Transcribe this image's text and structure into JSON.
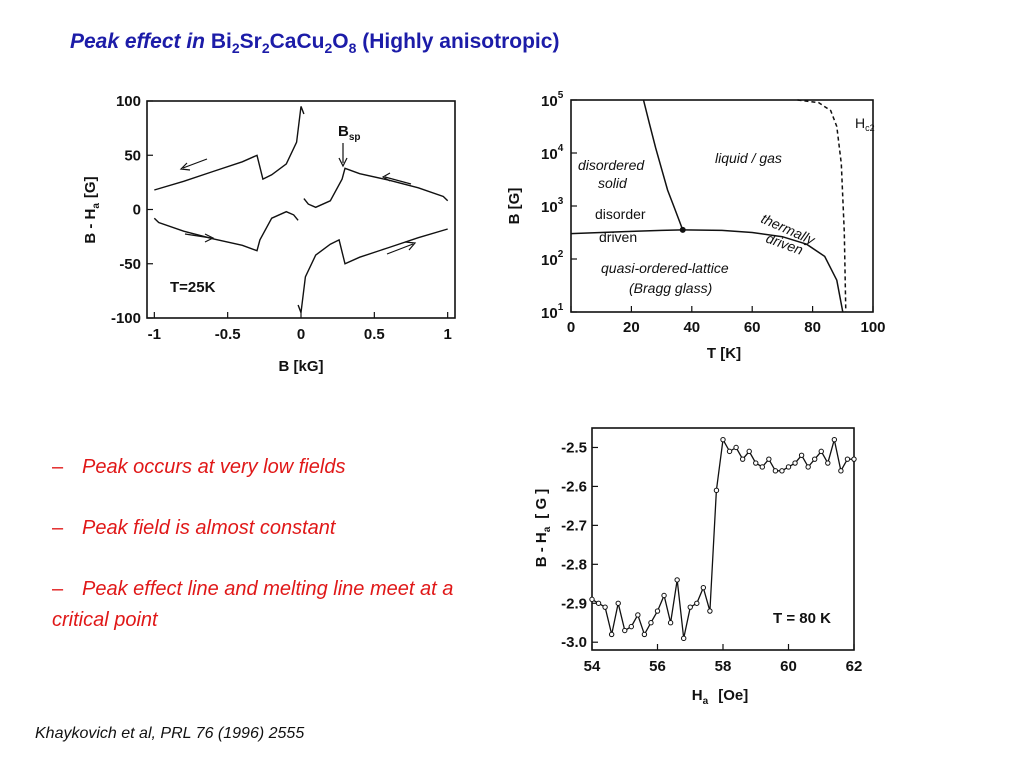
{
  "title": {
    "lead": "Peak effect in",
    "formula": [
      {
        "el": "Bi",
        "sub": "2"
      },
      {
        "el": "Sr",
        "sub": "2"
      },
      {
        "el": "CaCu",
        "sub": "2"
      },
      {
        "el": "O",
        "sub": "8"
      }
    ],
    "tail": "(Highly anisotropic)"
  },
  "bullets": [
    {
      "dash": "–",
      "text": "Peak occurs at very low fields"
    },
    {
      "dash": "–",
      "text": "Peak field is almost constant"
    },
    {
      "dash": "–",
      "text": "Peak effect line and melting line meet at a critical point"
    }
  ],
  "citation": "Khaykovich et al, PRL 76 (1996) 2555",
  "chart_data": [
    {
      "type": "line",
      "xlabel": "B [kG]",
      "ylabel_main": "B - H",
      "ylabel_sub": "a",
      "ylabel_unit": "[G]",
      "xlim": [
        -1.05,
        1.05
      ],
      "ylim": [
        -100,
        100
      ],
      "xticks": [
        -1,
        -0.5,
        0,
        0.5,
        1
      ],
      "xtick_labels": [
        "-1",
        "-0.5",
        "0",
        "0.5",
        "1"
      ],
      "yticks": [
        100,
        50,
        0,
        -50,
        -100
      ],
      "ytick_labels": [
        "100",
        "50",
        "0",
        "-50",
        "-100"
      ],
      "annotation": "T=25K",
      "marker": {
        "main": "B",
        "sub": "sp",
        "x": 0.28
      },
      "series": [
        {
          "x": [
            -1.0,
            -0.8,
            -0.6,
            -0.4,
            -0.3,
            -0.26,
            -0.2,
            -0.1,
            -0.03,
            0.0,
            0.02
          ],
          "y": [
            18,
            26,
            35,
            44,
            50,
            28,
            32,
            42,
            62,
            95,
            88
          ]
        },
        {
          "x": [
            0.02,
            0.05,
            0.1,
            0.2,
            0.28,
            0.3,
            0.4,
            0.6,
            0.8,
            0.97,
            1.0
          ],
          "y": [
            10,
            5,
            2,
            8,
            28,
            38,
            33,
            27,
            20,
            12,
            8
          ]
        },
        {
          "x": [
            1.0,
            0.8,
            0.6,
            0.4,
            0.3,
            0.26,
            0.2,
            0.1,
            0.03,
            0.0,
            -0.02
          ],
          "y": [
            -18,
            -26,
            -35,
            -44,
            -50,
            -28,
            -32,
            -42,
            -62,
            -95,
            -88
          ]
        },
        {
          "x": [
            -0.02,
            -0.05,
            -0.1,
            -0.2,
            -0.28,
            -0.3,
            -0.4,
            -0.6,
            -0.8,
            -0.97,
            -1.0
          ],
          "y": [
            -10,
            -5,
            -2,
            -8,
            -28,
            -38,
            -33,
            -27,
            -20,
            -12,
            -8
          ]
        }
      ]
    },
    {
      "type": "line",
      "xlabel": "T [K]",
      "ylabel": "B [G]",
      "xlim": [
        0,
        100
      ],
      "ylog": true,
      "ylim_log10": [
        1,
        5
      ],
      "xticks": [
        0,
        20,
        40,
        60,
        80,
        100
      ],
      "xtick_labels": [
        "0",
        "20",
        "40",
        "60",
        "80",
        "100"
      ],
      "yticks_log10": [
        1,
        2,
        3,
        4,
        5
      ],
      "ytick_base": "10",
      "ytick_exps": [
        "1",
        "2",
        "3",
        "4",
        "5"
      ],
      "labels": {
        "disordered_1": "disordered",
        "disordered_2": "solid",
        "liquid": "liquid / gas",
        "hc2_main": "H",
        "hc2_sub": "c2",
        "disorder_1": "disorder",
        "disorder_2": "driven",
        "thermally_1": "thermally",
        "thermally_2": "driven",
        "qol_1": "quasi-ordered-lattice",
        "qol_2": "(Bragg glass)"
      },
      "critical_point": {
        "T": 37,
        "B_log10": 2.55
      },
      "series": [
        {
          "name": "disorder-driven line",
          "T": [
            0,
            10,
            20,
            30,
            37
          ],
          "B_log10": [
            2.48,
            2.5,
            2.52,
            2.54,
            2.55
          ]
        },
        {
          "name": "thermally-driven line",
          "T": [
            37,
            50,
            60,
            70,
            78,
            84,
            88,
            90
          ],
          "B_log10": [
            2.55,
            2.54,
            2.5,
            2.42,
            2.28,
            2.05,
            1.6,
            1.0
          ]
        },
        {
          "name": "order-disorder boundary",
          "T": [
            24,
            26,
            28,
            30,
            32,
            34,
            36,
            37
          ],
          "B_log10": [
            5.0,
            4.55,
            4.1,
            3.7,
            3.3,
            3.0,
            2.7,
            2.55
          ]
        },
        {
          "name": "Hc2",
          "T": [
            75,
            82,
            86,
            88,
            89.5,
            90.5,
            91
          ],
          "B_log10": [
            5.0,
            4.95,
            4.8,
            4.5,
            3.8,
            2.5,
            1.0
          ]
        }
      ]
    },
    {
      "type": "line",
      "xlabel_main": "H",
      "xlabel_sub": "a",
      "xlabel_unit": "[Oe]",
      "ylabel_main": "B - H",
      "ylabel_sub": "a",
      "ylabel_unit": "[ G ]",
      "xlim": [
        54,
        62
      ],
      "ylim": [
        -3.02,
        -2.45
      ],
      "xticks": [
        54,
        56,
        58,
        60,
        62
      ],
      "xtick_labels": [
        "54",
        "56",
        "58",
        "60",
        "62"
      ],
      "yticks": [
        -2.5,
        -2.6,
        -2.7,
        -2.8,
        -2.9,
        -3.0
      ],
      "ytick_labels": [
        "-2.5",
        "-2.6",
        "-2.7",
        "-2.8",
        "-2.9",
        "-3.0"
      ],
      "annotation": "T = 80 K",
      "series": [
        {
          "x": [
            54.0,
            54.2,
            54.4,
            54.6,
            54.8,
            55.0,
            55.2,
            55.4,
            55.6,
            55.8,
            56.0,
            56.2,
            56.4,
            56.6,
            56.8,
            57.0,
            57.2,
            57.4,
            57.6,
            57.8,
            58.0,
            58.2,
            58.4,
            58.6,
            58.8,
            59.0,
            59.2,
            59.4,
            59.6,
            59.8,
            60.0,
            60.2,
            60.4,
            60.6,
            60.8,
            61.0,
            61.2,
            61.4,
            61.6,
            61.8,
            62.0
          ],
          "y": [
            -2.89,
            -2.9,
            -2.91,
            -2.98,
            -2.9,
            -2.97,
            -2.96,
            -2.93,
            -2.98,
            -2.95,
            -2.92,
            -2.88,
            -2.95,
            -2.84,
            -2.99,
            -2.91,
            -2.9,
            -2.86,
            -2.92,
            -2.61,
            -2.48,
            -2.51,
            -2.5,
            -2.53,
            -2.51,
            -2.54,
            -2.55,
            -2.53,
            -2.56,
            -2.56,
            -2.55,
            -2.54,
            -2.52,
            -2.55,
            -2.53,
            -2.51,
            -2.54,
            -2.48,
            -2.56,
            -2.53,
            -2.53
          ]
        }
      ]
    }
  ]
}
